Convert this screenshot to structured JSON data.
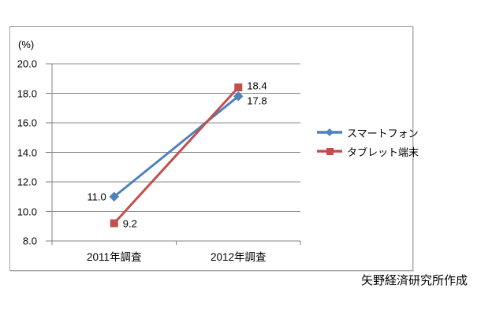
{
  "page": {
    "background": "#ffffff",
    "source_credit": "矢野経済研究所作成"
  },
  "chart_data": {
    "type": "line",
    "title": "",
    "ylabel": "(%)",
    "xlabel": "",
    "categories": [
      "2011年調査",
      "2012年調査"
    ],
    "series": [
      {
        "name": "スマートフォン",
        "values": [
          11.0,
          17.8
        ],
        "labels": [
          "11.0",
          "17.8"
        ],
        "color": "#4F81BD",
        "marker": "diamond",
        "label_placement": [
          {
            "side": "left",
            "dy": 0
          },
          {
            "side": "right",
            "dy": 6
          }
        ]
      },
      {
        "name": "タブレット端末",
        "values": [
          9.2,
          18.4
        ],
        "labels": [
          "9.2",
          "18.4"
        ],
        "color": "#C0504D",
        "marker": "square",
        "label_placement": [
          {
            "side": "right",
            "dy": 0
          },
          {
            "side": "right",
            "dy": -2
          }
        ]
      }
    ],
    "ylim": [
      8.0,
      20.0
    ],
    "ytick_step": 2.0,
    "ytick_labels": [
      "20.0",
      "18.0",
      "16.0",
      "14.0",
      "12.0",
      "10.0",
      "8.0"
    ],
    "grid": true,
    "legend_position": "right",
    "grid_color": "#8c8c8c",
    "axis_color": "#808080"
  }
}
